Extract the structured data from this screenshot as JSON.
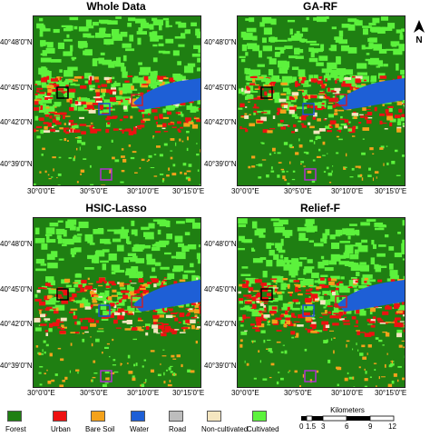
{
  "panels": [
    {
      "title": "Whole Data"
    },
    {
      "title": "GA-RF"
    },
    {
      "title": "HSIC-Lasso"
    },
    {
      "title": "Relief-F"
    }
  ],
  "latitude_labels": [
    "40°48'0\"N",
    "40°45'0\"N",
    "40°42'0\"N",
    "40°39'0\"N"
  ],
  "longitude_labels": [
    "30°0'0\"E",
    "30°5'0\"E",
    "30°10'0\"E",
    "30°15'0\"E"
  ],
  "north_arrow": {
    "label": "N",
    "icon": "north-arrow-icon"
  },
  "legend": [
    {
      "label": "Forest",
      "color": "#1f7f12"
    },
    {
      "label": "Urban",
      "color": "#ee1111"
    },
    {
      "label": "Bare Soil",
      "color": "#f4a21b"
    },
    {
      "label": "Water",
      "color": "#1e5fd6"
    },
    {
      "label": "Road",
      "color": "#bdbdbd"
    },
    {
      "label": "Non-cultivated",
      "color": "#f5e6c0"
    },
    {
      "label": "Cultivated",
      "color": "#5cf23c"
    }
  ],
  "scale_bar": {
    "title": "Kilometers",
    "ticks": [
      "0",
      "1.5",
      "3",
      "6",
      "9",
      "12"
    ]
  },
  "highlight_box_colors": [
    "#000000",
    "#c8202a",
    "#1f4fd0",
    "#b030d0"
  ]
}
